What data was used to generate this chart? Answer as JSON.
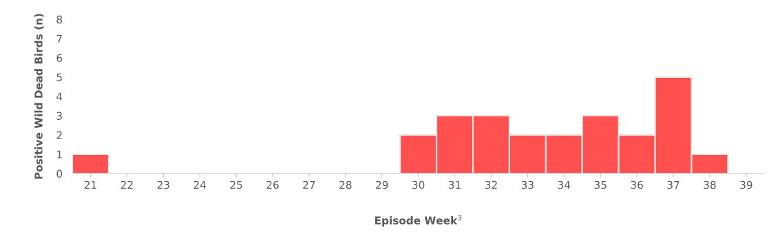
{
  "chart_data": {
    "type": "bar",
    "xlabel": "Episode Week$^{3}$",
    "ylabel": "Positive Wild Dead Birds (n)",
    "categories": [
      "21",
      "22",
      "23",
      "24",
      "25",
      "26",
      "27",
      "28",
      "29",
      "30",
      "31",
      "32",
      "33",
      "34",
      "35",
      "36",
      "37",
      "38",
      "39"
    ],
    "values": [
      1,
      0,
      0,
      0,
      0,
      0,
      0,
      0,
      0,
      2,
      3,
      3,
      2,
      2,
      3,
      2,
      5,
      1,
      0
    ],
    "color": "#ff5050",
    "ylim": [
      0,
      8
    ],
    "yticks": [
      0,
      1,
      2,
      3,
      4,
      5,
      6,
      7,
      8
    ],
    "grid": false
  }
}
